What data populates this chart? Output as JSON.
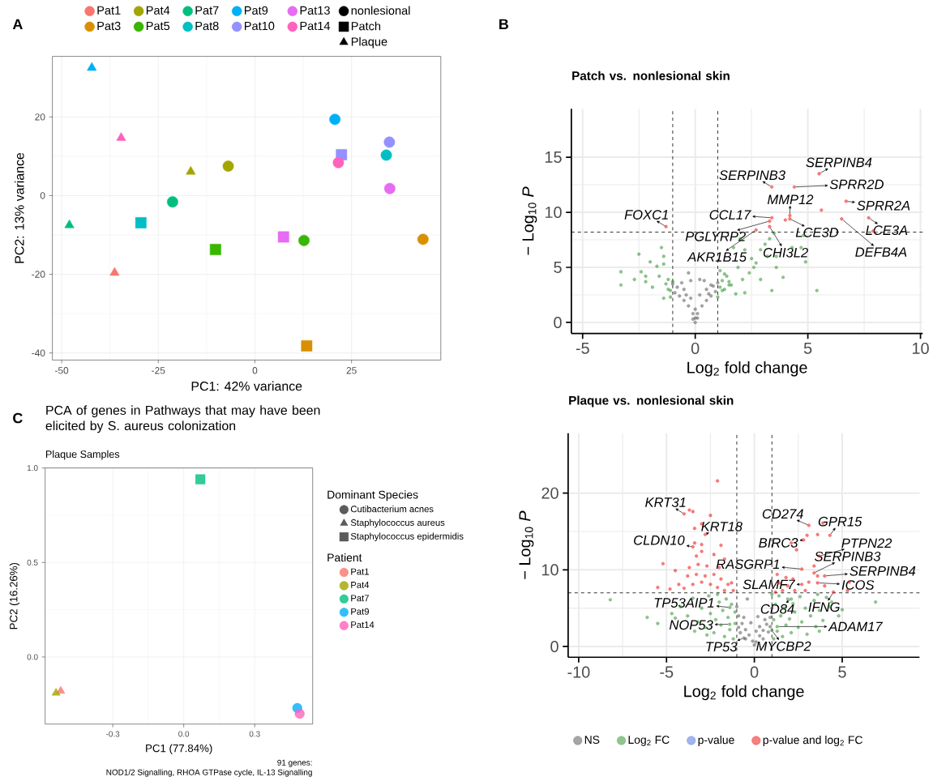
{
  "chart_data": [
    {
      "type": "scatter",
      "xlabel": "PC1: 42% variance",
      "ylabel": "PC2: 13% variance",
      "annotations": [
        "A"
      ],
      "xlim": [
        -52.4,
        48.1
      ],
      "ylim": [
        -41.8,
        35.4
      ],
      "xticks": [
        -50,
        -25,
        0,
        25
      ],
      "yticks": [
        -40,
        -20,
        0,
        20
      ],
      "grid": true,
      "legend": "top",
      "series": [
        {
          "name": "Pat1",
          "color": "#f8766d",
          "marker": "triangle",
          "x": [
            -36.3
          ],
          "values": [
            -19.6
          ]
        },
        {
          "name": "Pat3",
          "color": "#d89000",
          "marker": "circle",
          "x": [
            43.5
          ],
          "values": [
            -11.1
          ]
        },
        {
          "color": "#d89000",
          "marker": "square",
          "x": [
            13.4
          ],
          "values": [
            -38.2
          ]
        },
        {
          "name": "Pat4",
          "color": "#a3a500",
          "marker": "circle",
          "x": [
            -6.9
          ],
          "values": [
            7.5
          ]
        },
        {
          "color": "#a3a500",
          "marker": "triangle",
          "x": [
            -16.6
          ],
          "values": [
            6.1
          ]
        },
        {
          "name": "Pat5",
          "color": "#39b600",
          "marker": "circle",
          "x": [
            12.7
          ],
          "values": [
            -11.4
          ]
        },
        {
          "color": "#39b600",
          "marker": "square",
          "x": [
            -10.2
          ],
          "values": [
            -13.7
          ]
        },
        {
          "name": "Pat7",
          "color": "#00bf7d",
          "marker": "circle",
          "x": [
            -21.3
          ],
          "values": [
            -1.6
          ]
        },
        {
          "color": "#00bf7d",
          "marker": "triangle",
          "x": [
            -48.0
          ],
          "values": [
            -7.5
          ]
        },
        {
          "name": "Pat8",
          "color": "#00bfc4",
          "marker": "circle",
          "x": [
            34.0
          ],
          "values": [
            10.3
          ]
        },
        {
          "color": "#00bfc4",
          "marker": "square",
          "x": [
            -29.5
          ],
          "values": [
            -6.9
          ]
        },
        {
          "name": "Pat9",
          "color": "#00b0f6",
          "marker": "circle",
          "x": [
            20.7
          ],
          "values": [
            19.4
          ]
        },
        {
          "color": "#00b0f6",
          "marker": "triangle",
          "x": [
            -42.2
          ],
          "values": [
            32.5
          ]
        },
        {
          "name": "Pat10",
          "color": "#9590ff",
          "marker": "circle",
          "x": [
            34.8
          ],
          "values": [
            13.6
          ]
        },
        {
          "color": "#9590ff",
          "marker": "square",
          "x": [
            22.4
          ],
          "values": [
            10.4
          ]
        },
        {
          "name": "Pat13",
          "color": "#e76bf3",
          "marker": "circle",
          "x": [
            34.9
          ],
          "values": [
            1.8
          ]
        },
        {
          "color": "#e76bf3",
          "marker": "square",
          "x": [
            7.4
          ],
          "values": [
            -10.5
          ]
        },
        {
          "name": "Pat14",
          "color": "#ff62bc",
          "marker": "circle",
          "x": [
            21.6
          ],
          "values": [
            8.4
          ]
        },
        {
          "color": "#ff62bc",
          "marker": "triangle",
          "x": [
            -34.6
          ],
          "values": [
            14.7
          ]
        },
        {
          "name": "nonlesional",
          "color": "#000000",
          "marker": "circle"
        },
        {
          "name": "Patch",
          "color": "#000000",
          "marker": "square"
        },
        {
          "name": "Plaque",
          "color": "#000000",
          "marker": "triangle"
        }
      ]
    },
    {
      "type": "scatter",
      "title": "Patch vs. nonlesional skin",
      "xlabel": "Log$_{2}$ fold change",
      "ylabel": "− Log$_{10}$ *P*",
      "xlim": [
        -5.5,
        10.1
      ],
      "ylim": [
        -1.0,
        19.4
      ],
      "xticks": [
        -5,
        0,
        5,
        10
      ],
      "yticks": [
        0,
        5,
        10,
        15
      ],
      "grid": true,
      "marker": "circle",
      "ref_lines": [
        {
          "axis": "x",
          "value": -1,
          "line_style": "dashed"
        },
        {
          "axis": "x",
          "value": 1,
          "line_style": "dashed"
        },
        {
          "axis": "y",
          "value": 8.2,
          "line_style": "dashed"
        }
      ],
      "annotations": [
        "B",
        {
          "text": "FOXC1",
          "x": -1.3,
          "y": 8.7
        },
        {
          "text": "SERPINB3",
          "x": 3.4,
          "y": 12.3
        },
        {
          "text": "SERPINB4",
          "x": 5.5,
          "y": 13.5
        },
        {
          "text": "SPRR2D",
          "x": 4.4,
          "y": 12.3
        },
        {
          "text": "MMP12",
          "x": 4.2,
          "y": 9.7
        },
        {
          "text": "SPRR2A",
          "x": 6.7,
          "y": 11.0
        },
        {
          "text": "CCL17",
          "x": 3.4,
          "y": 9.5
        },
        {
          "text": "LCE3D",
          "x": 4.2,
          "y": 9.4
        },
        {
          "text": "LCE3A",
          "x": 7.7,
          "y": 9.5
        },
        {
          "text": "PGLYRP2",
          "x": 3.3,
          "y": 9.2
        },
        {
          "text": "CHI3L2",
          "x": 3.3,
          "y": 8.7
        },
        {
          "text": "DEFB4A",
          "x": 6.5,
          "y": 9.4
        },
        {
          "text": "AKR1B15",
          "x": 2.7,
          "y": 8.4
        }
      ],
      "series": [
        {
          "color": "#4d4d4d",
          "x": [
            0,
            -0.1,
            0.1,
            -0.3,
            0.3,
            -0.5,
            0.5,
            -0.7,
            0.7,
            -0.9,
            0.9,
            -1.0,
            1.0,
            -0.5,
            0.5,
            -0.3,
            0.0,
            -0.2,
            0.2,
            0.4,
            -0.6,
            0.7,
            -0.8,
            0.8,
            -0.2,
            0.2,
            0.6,
            -0.4,
            0.0,
            -0.1,
            0.1
          ],
          "values": [
            0,
            0.8,
            0.8,
            1.5,
            1.5,
            2.0,
            2.0,
            2.4,
            2.4,
            2.7,
            2.8,
            3.5,
            3.6,
            3.0,
            3.0,
            4.5,
            1.2,
            3.8,
            3.9,
            3.8,
            3.6,
            3.4,
            3.2,
            3.3,
            2.2,
            2.5,
            2.6,
            2.5,
            0.4,
            0.3,
            0.4
          ]
        },
        {
          "color": "#228b22",
          "x": [
            -3.3,
            -3.3,
            -2.5,
            -2.7,
            -2.4,
            -2.2,
            -2.0,
            -1.7,
            -1.5,
            -1.4,
            -1.4,
            -1.6,
            -1.2,
            -1.1,
            -1.9,
            -2.2,
            -1.4,
            1.1,
            1.2,
            1.4,
            1.6,
            1.7,
            2.0,
            2.2,
            1.9,
            2.1,
            2.5,
            2.7,
            2.9,
            3.2,
            3.3,
            3.5,
            3.6,
            3.6,
            3.9,
            4.3,
            4.7,
            4.9,
            3.4,
            5.4,
            2.9,
            2.2,
            2.6,
            1.5,
            1.8,
            2.4,
            4.8,
            3.1,
            -1.1,
            -1.2,
            -1.3,
            -1.0,
            1.0,
            1.1,
            1.2,
            1.3,
            1.5,
            1.3
          ],
          "values": [
            4.6,
            3.4,
            6.2,
            3.9,
            4.6,
            3.7,
            5.5,
            5.1,
            6.8,
            6.0,
            5.3,
            4.2,
            3.9,
            2.9,
            3.2,
            4.2,
            2.2,
            4.7,
            2.9,
            4.2,
            3.4,
            6.8,
            7.6,
            6.6,
            5.0,
            3.9,
            5.8,
            5.4,
            6.6,
            6.0,
            7.6,
            8.1,
            5.0,
            6.0,
            4.1,
            6.8,
            6.8,
            5.5,
            2.9,
            2.9,
            3.9,
            2.7,
            5.0,
            3.4,
            2.6,
            4.5,
            7.9,
            7.1,
            2.3,
            3.0,
            3.5,
            3.7,
            2.3,
            3.2,
            3.8,
            3.0,
            3.7,
            4.4
          ]
        },
        {
          "color": "#ee0000",
          "x": [
            -1.3,
            3.4,
            5.5,
            4.4,
            5.6,
            6.7,
            4.2,
            4.2,
            4.0,
            3.4,
            3.3,
            3.3,
            2.7,
            6.5,
            7.7,
            7.9
          ],
          "values": [
            8.7,
            12.3,
            13.5,
            12.3,
            10.2,
            11.0,
            9.7,
            9.4,
            9.3,
            9.5,
            9.2,
            8.7,
            8.4,
            9.4,
            9.5,
            8.3
          ]
        }
      ]
    },
    {
      "type": "scatter",
      "title": "Plaque vs. nonlesional skin",
      "xlabel": "Log$_{2}$ fold change",
      "ylabel": "− Log$_{10}$ *P*",
      "xlim": [
        -10.6,
        9.4
      ],
      "ylim": [
        -1.4,
        27.8
      ],
      "xticks": [
        -10,
        -5,
        0,
        5
      ],
      "yticks": [
        0,
        10,
        20
      ],
      "grid": true,
      "legend": "bottom",
      "marker": "circle",
      "ref_lines": [
        {
          "axis": "x",
          "value": -1,
          "line_style": "dashed"
        },
        {
          "axis": "x",
          "value": 1,
          "line_style": "dashed"
        },
        {
          "axis": "y",
          "value": 7.0,
          "line_style": "dashed"
        }
      ],
      "annotations": [
        {
          "text": "KRT31",
          "x": -4.0,
          "y": 17.3
        },
        {
          "text": "KRT18",
          "x": -2.8,
          "y": 14.6
        },
        {
          "text": "CLDN10",
          "x": -3.5,
          "y": 13.0
        },
        {
          "text": "CD274",
          "x": 3.1,
          "y": 15.8
        },
        {
          "text": "GPR15",
          "x": 4.3,
          "y": 14.5
        },
        {
          "text": "BIRC3",
          "x": 2.8,
          "y": 13.9
        },
        {
          "text": "PTPN22",
          "x": 3.7,
          "y": 11.8
        },
        {
          "text": "RASGRP1",
          "x": 2.7,
          "y": 10.1
        },
        {
          "text": "SERPINB3",
          "x": 3.4,
          "y": 9.6
        },
        {
          "text": "SERPINB4",
          "x": 4.0,
          "y": 9.2
        },
        {
          "text": "SLAMF7",
          "x": 2.7,
          "y": 8.1
        },
        {
          "text": "ICOS",
          "x": 3.6,
          "y": 8.3
        },
        {
          "text": "IFNG",
          "x": 4.5,
          "y": 7.1
        },
        {
          "text": "CD84",
          "x": 2.1,
          "y": 6.2
        },
        {
          "text": "TP53AIP1",
          "x": -1.4,
          "y": 5.1
        },
        {
          "text": "NOP53",
          "x": -1.4,
          "y": 2.9
        },
        {
          "text": "TP53",
          "x": -0.6,
          "y": 1.1
        },
        {
          "text": "MYCBP2",
          "x": 1.0,
          "y": 2.1
        },
        {
          "text": "ADAM17",
          "x": 1.3,
          "y": 2.6
        }
      ],
      "series": [
        {
          "name": "NS",
          "color": "#4d4d4d",
          "x": [
            0,
            -0.1,
            0.1,
            -0.3,
            0.3,
            -0.5,
            0.5,
            -0.7,
            0.7,
            -0.9,
            0.9,
            -1.0,
            1.0,
            -0.8,
            0.8,
            -0.6,
            0.6,
            -0.4,
            0.2,
            -0.2,
            0.3,
            -0.5,
            0.5,
            -0.9,
            0.9,
            0.1,
            -0.6
          ],
          "values": [
            0.2,
            0.7,
            0.6,
            1.5,
            1.4,
            2.2,
            2.1,
            3.0,
            2.9,
            4.0,
            3.8,
            5.2,
            5.0,
            1.8,
            1.9,
            3.8,
            3.5,
            6.2,
            3.9,
            3.1,
            2.6,
            1.0,
            1.0,
            2.5,
            2.6,
            2.0,
            1.1
          ]
        },
        {
          "name": "Log$_{2}$ FC",
          "color": "#228b22",
          "x": [
            -8.2,
            -6.1,
            -5.5,
            -4.7,
            6.9,
            5.0,
            4.8,
            3.7,
            4.4,
            -4.2,
            -3.8,
            -3.5,
            -3.2,
            -3.0,
            -2.8,
            -2.6,
            -2.5,
            -2.3,
            -2.2,
            -2.0,
            -1.9,
            -1.8,
            -1.7,
            -1.6,
            -1.5,
            -1.4,
            -1.3,
            -1.2,
            -1.1,
            -1.1,
            -2.7,
            -3.4,
            -2.1,
            -4.5,
            1.1,
            1.1,
            1.2,
            1.3,
            1.4,
            1.5,
            1.6,
            1.7,
            1.8,
            1.9,
            2.0,
            2.1,
            2.2,
            2.3,
            2.5,
            2.6,
            2.7,
            2.9,
            3.0,
            3.2,
            3.4,
            3.5,
            3.7,
            3.9,
            4.1,
            4.3,
            1.0,
            3.6,
            2.1,
            -1.4,
            -1.4,
            1.0,
            1.3
          ],
          "values": [
            6.1,
            3.8,
            3.0,
            4.3,
            5.8,
            4.8,
            4.0,
            2.0,
            5.8,
            5.2,
            4.0,
            6.3,
            3.2,
            5.0,
            2.5,
            6.6,
            4.3,
            1.8,
            3.5,
            5.8,
            2.8,
            4.7,
            1.3,
            6.2,
            3.8,
            2.2,
            5.5,
            1.0,
            3.0,
            4.5,
            1.5,
            2.0,
            6.8,
            3.7,
            1.0,
            3.5,
            5.5,
            2.0,
            6.6,
            4.0,
            1.3,
            5.0,
            2.8,
            6.2,
            3.6,
            1.8,
            5.6,
            4.5,
            2.5,
            6.5,
            3.2,
            5.0,
            1.6,
            4.0,
            6.0,
            2.6,
            4.7,
            3.4,
            6.4,
            5.2,
            6.8,
            6.8,
            6.2,
            5.1,
            2.9,
            2.1,
            2.6
          ]
        },
        {
          "name": "p-value",
          "color": "#4169e1"
        },
        {
          "name": "p-value and log$_{2}$ FC",
          "color": "#ee0000",
          "x": [
            -2.1,
            -4.0,
            -3.7,
            -3.5,
            -2.5,
            -3.0,
            -3.4,
            -2.8,
            -3.4,
            -3.0,
            -3.5,
            -3.0,
            -3.3,
            -1.9,
            -2.3,
            -5.2,
            -4.5,
            -3.7,
            -3.2,
            -2.7,
            -1.7,
            -2.0,
            -3.8,
            -3.3,
            -2.8,
            -2.3,
            -1.9,
            -5.5,
            -4.8,
            -4.0,
            -3.0,
            -2.5,
            -2.1,
            -1.5,
            -1.2,
            -4.3,
            -3.5,
            -1.7,
            -1.3,
            3.1,
            3.9,
            3.0,
            3.6,
            4.3,
            2.8,
            2.1,
            2.4,
            3.7,
            2.7,
            3.4,
            3.6,
            4.0,
            1.3,
            1.8,
            2.2,
            2.7,
            1.4,
            1.9,
            3.1,
            3.6,
            1.2,
            2.3,
            4.5,
            5.4,
            5.3,
            1.6,
            2.9,
            4.0,
            3.4
          ],
          "values": [
            21.6,
            17.3,
            17.8,
            17.6,
            17.1,
            16.0,
            15.4,
            14.6,
            13.5,
            13.3,
            13.0,
            12.4,
            11.8,
            13.2,
            12.0,
            10.8,
            9.9,
            10.3,
            10.7,
            10.5,
            11.4,
            10.3,
            9.2,
            9.4,
            9.2,
            9.4,
            8.8,
            7.7,
            7.5,
            7.6,
            8.4,
            8.1,
            7.7,
            8.1,
            7.3,
            8.1,
            8.1,
            7.3,
            8.3,
            15.8,
            16.1,
            14.5,
            14.6,
            14.5,
            13.9,
            13.5,
            12.6,
            11.8,
            10.1,
            9.6,
            9.2,
            9.2,
            9.4,
            9.0,
            8.8,
            8.1,
            8.3,
            7.9,
            8.4,
            8.3,
            7.1,
            7.3,
            7.1,
            8.4,
            7.3,
            7.3,
            7.3,
            7.9,
            10.5
          ]
        }
      ]
    },
    {
      "type": "scatter",
      "title": "PCA of genes in Pathways that may have been elicited by S. aureus colonization",
      "subtitle": "Plaque Samples",
      "xlabel": "PC1 (77.84%)",
      "ylabel": "PC2 (16.26%)",
      "legend_title": [
        "Dominant Species",
        "Patient"
      ],
      "annotations": [
        "C",
        "91 genes:",
        "NOD1/2 Signalling, RHOA GTPase cycle, IL-13 Signalling"
      ],
      "xlim": [
        -0.586,
        0.545
      ],
      "ylim": [
        -0.355,
        1.0
      ],
      "xticks": [
        -0.3,
        {
          "value": 0,
          "label": "0.0"
        },
        0.3
      ],
      "yticks": [
        {
          "value": 0,
          "label": "0.0"
        },
        0.5,
        {
          "value": 1,
          "label": "1.0"
        }
      ],
      "grid": true,
      "legend": "right",
      "series": [
        {
          "name": "Cutibacterium acnes",
          "color": "#333333",
          "marker": "circle"
        },
        {
          "name": "Staphylococcus aureus",
          "color": "#333333",
          "marker": "triangle"
        },
        {
          "name": "Staphylococcus epidermidis",
          "color": "#333333",
          "marker": "square"
        },
        {
          "name": "Pat1",
          "color": "#f8766d",
          "marker": "triangle",
          "x": [
            -0.52
          ],
          "values": [
            -0.18
          ]
        },
        {
          "name": "Pat4",
          "color": "#a3a500",
          "marker": "triangle",
          "x": [
            -0.54
          ],
          "values": [
            -0.19
          ]
        },
        {
          "name": "Pat7",
          "color": "#00bf7d",
          "marker": "square",
          "x": [
            0.07
          ],
          "values": [
            0.94
          ]
        },
        {
          "name": "Pat9",
          "color": "#00b0f6",
          "marker": "circle",
          "x": [
            0.48
          ],
          "values": [
            -0.27
          ]
        },
        {
          "name": "Pat14",
          "color": "#ff62bc",
          "marker": "circle",
          "x": [
            0.49
          ],
          "values": [
            -0.3
          ]
        }
      ]
    }
  ]
}
